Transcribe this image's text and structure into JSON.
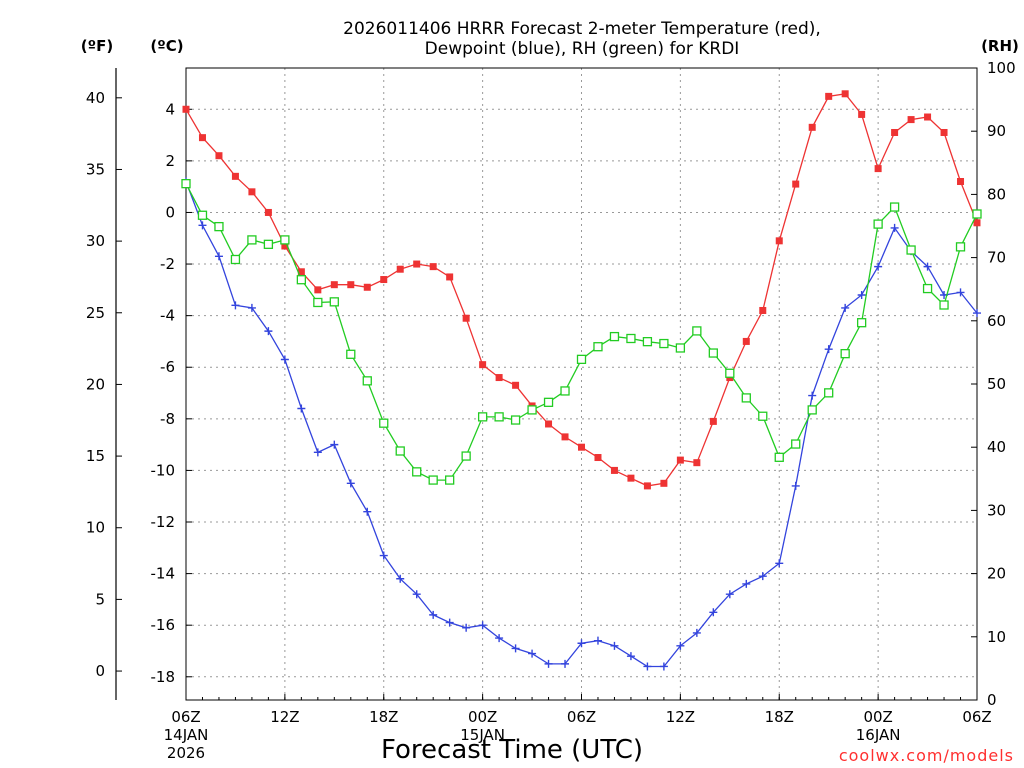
{
  "chart_data": {
    "type": "line",
    "title": [
      "2026011406 HRRR Forecast 2-meter Temperature (red),",
      "Dewpoint (blue), RH (green) for KRDI"
    ],
    "xlabel": "Forecast Time (UTC)",
    "credit": "coolwx.com/models",
    "units": {
      "fahrenheit": "(ºF)",
      "celsius": "(ºC)",
      "rh": "(RH)"
    },
    "ylim_c": [
      -18.9,
      5.6
    ],
    "ylim_rh": [
      0,
      100
    ],
    "yticks_c": [
      4,
      2,
      0,
      -2,
      -4,
      -6,
      -8,
      -10,
      -12,
      -14,
      -16,
      -18
    ],
    "yticks_f": [
      40,
      35,
      30,
      25,
      20,
      15,
      10,
      5,
      0
    ],
    "yticks_rh": [
      100,
      90,
      80,
      70,
      60,
      50,
      40,
      30,
      20,
      10,
      0
    ],
    "x_range_hours": [
      0,
      48
    ],
    "x_ticks": [
      {
        "label": "06Z",
        "hour": 0,
        "sub": [
          "14JAN",
          "2026"
        ]
      },
      {
        "label": "12Z",
        "hour": 6,
        "sub": []
      },
      {
        "label": "18Z",
        "hour": 12,
        "sub": []
      },
      {
        "label": "00Z",
        "hour": 18,
        "sub": [
          "15JAN"
        ]
      },
      {
        "label": "06Z",
        "hour": 24,
        "sub": []
      },
      {
        "label": "12Z",
        "hour": 30,
        "sub": []
      },
      {
        "label": "18Z",
        "hour": 36,
        "sub": []
      },
      {
        "label": "00Z",
        "hour": 42,
        "sub": [
          "16JAN"
        ]
      },
      {
        "label": "06Z",
        "hour": 48,
        "sub": []
      }
    ],
    "grid": true,
    "hours": [
      0,
      1,
      2,
      3,
      4,
      5,
      6,
      7,
      8,
      9,
      10,
      11,
      12,
      13,
      14,
      15,
      16,
      17,
      18,
      19,
      20,
      21,
      22,
      23,
      24,
      25,
      26,
      27,
      28,
      29,
      30,
      31,
      32,
      33,
      34,
      35,
      36,
      37,
      38,
      39,
      40,
      41,
      42,
      43,
      44,
      45,
      46,
      47,
      48
    ],
    "series": [
      {
        "name": "Temperature",
        "unit": "C",
        "color": "#ee3333",
        "marker": "square-filled",
        "values": [
          4.0,
          2.9,
          2.2,
          1.4,
          0.8,
          0.0,
          -1.3,
          -2.3,
          -3.0,
          -2.8,
          -2.8,
          -2.9,
          -2.6,
          -2.2,
          -2.0,
          -2.1,
          -2.5,
          -4.1,
          -5.9,
          -6.4,
          -6.7,
          -7.5,
          -8.2,
          -8.7,
          -9.1,
          -9.5,
          -10.0,
          -10.3,
          -10.6,
          -10.5,
          -9.6,
          -9.7,
          -8.1,
          -6.4,
          -5.0,
          -3.8,
          -1.1,
          1.1,
          3.3,
          4.5,
          4.6,
          3.8,
          1.7,
          3.1,
          3.6,
          3.7,
          3.1,
          1.2,
          -0.4
        ]
      },
      {
        "name": "Dewpoint",
        "unit": "C",
        "color": "#3344dd",
        "marker": "plus",
        "values": [
          1.2,
          -0.5,
          -1.7,
          -3.6,
          -3.7,
          -4.6,
          -5.7,
          -7.6,
          -9.3,
          -9.0,
          -10.5,
          -11.6,
          -13.3,
          -14.2,
          -14.8,
          -15.6,
          -15.9,
          -16.1,
          -16.0,
          -16.5,
          -16.9,
          -17.1,
          -17.5,
          -17.5,
          -16.7,
          -16.6,
          -16.8,
          -17.2,
          -17.6,
          -17.6,
          -16.8,
          -16.3,
          -15.5,
          -14.8,
          -14.4,
          -14.1,
          -13.6,
          -10.6,
          -7.1,
          -5.3,
          -3.7,
          -3.2,
          -2.1,
          -0.6,
          -1.5,
          -2.1,
          -3.2,
          -3.1,
          -3.9
        ]
      },
      {
        "name": "RH",
        "unit": "%",
        "color": "#22cc22",
        "marker": "square-open",
        "values": [
          81.7,
          76.7,
          74.9,
          69.7,
          72.8,
          72.1,
          72.8,
          66.5,
          62.9,
          63.0,
          54.7,
          50.5,
          43.8,
          39.4,
          36.1,
          34.8,
          34.8,
          38.6,
          44.8,
          44.8,
          44.3,
          45.9,
          47.1,
          48.9,
          53.9,
          55.9,
          57.5,
          57.2,
          56.7,
          56.4,
          55.7,
          58.4,
          54.9,
          51.7,
          47.8,
          44.9,
          38.4,
          40.5,
          45.9,
          48.6,
          54.8,
          59.7,
          75.3,
          78.0,
          71.2,
          65.1,
          62.5,
          71.7,
          76.9
        ]
      }
    ]
  }
}
